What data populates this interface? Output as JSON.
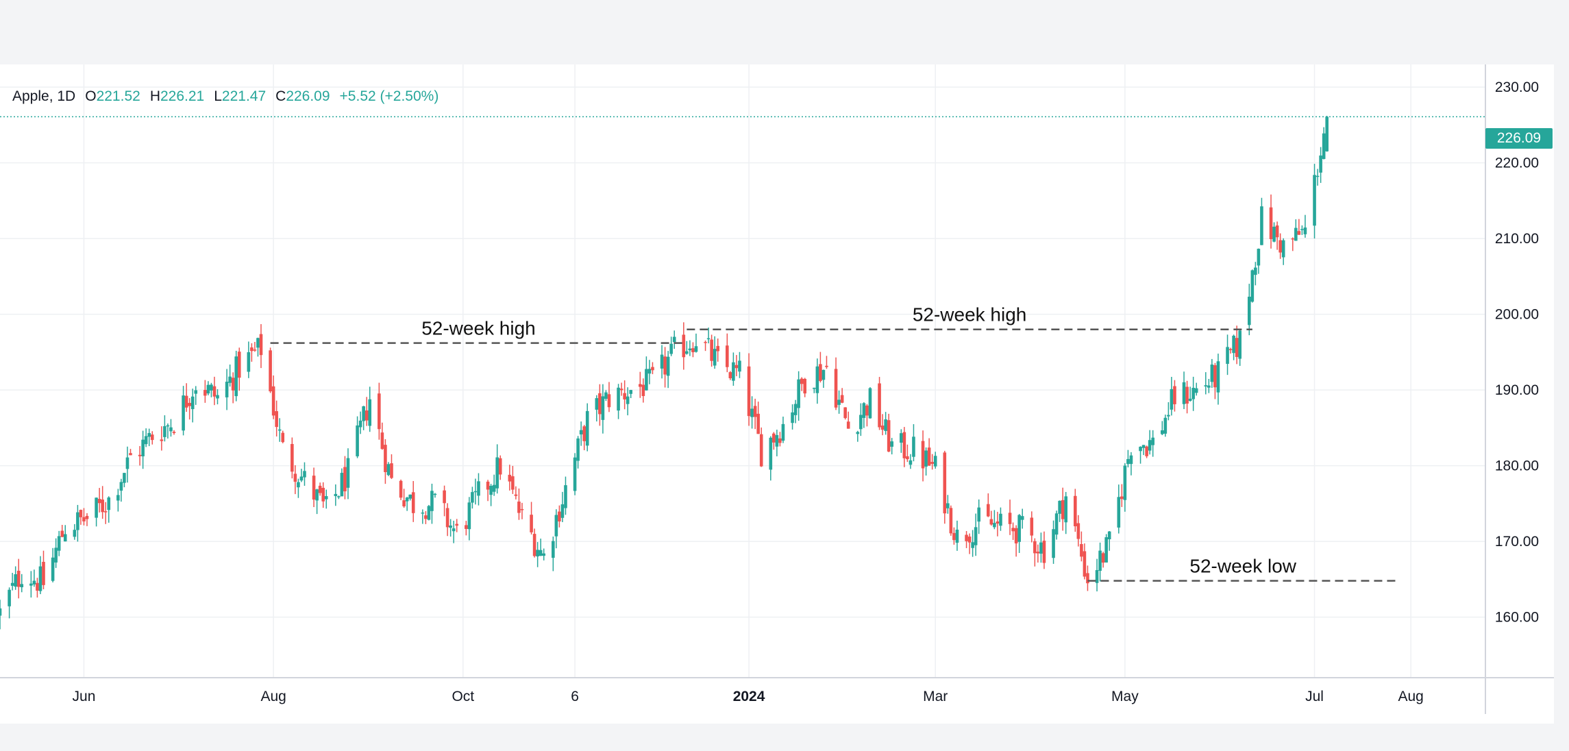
{
  "header": {
    "symbol": "Apple, 1D",
    "open_label": "O",
    "open": "221.52",
    "high_label": "H",
    "high": "226.21",
    "low_label": "L",
    "low": "221.47",
    "close_label": "C",
    "close": "226.09",
    "change": "+5.52 (+2.50%)"
  },
  "last_price_label": "226.09",
  "colors": {
    "up": "#26a69a",
    "down": "#ef5350",
    "grid": "#eef0f3",
    "axis_text": "#131722",
    "annotation": "#555555"
  },
  "chart_data": {
    "type": "candlestick",
    "title": "",
    "xlabel": "",
    "ylabel": "",
    "ylim": [
      152,
      233
    ],
    "y_ticks": [
      "230.00",
      "220.00",
      "210.00",
      "200.00",
      "190.00",
      "180.00",
      "170.00",
      "160.00"
    ],
    "x_range": [
      "2023-05-05",
      "2024-08-25"
    ],
    "x_ticks": [
      {
        "date": "2023-06-01",
        "label": "Jun",
        "bold": false
      },
      {
        "date": "2023-08-01",
        "label": "Aug",
        "bold": false
      },
      {
        "date": "2023-10-01",
        "label": "Oct",
        "bold": false
      },
      {
        "date": "2023-11-06",
        "label": "6",
        "bold": false
      },
      {
        "date": "2024-01-01",
        "label": "2024",
        "bold": true
      },
      {
        "date": "2024-03-01",
        "label": "Mar",
        "bold": false
      },
      {
        "date": "2024-05-01",
        "label": "May",
        "bold": false
      },
      {
        "date": "2024-07-01",
        "label": "Jul",
        "bold": false
      },
      {
        "date": "2024-08-01",
        "label": "Aug",
        "bold": false
      }
    ],
    "last_price": 226.09,
    "price_path": [
      [
        "2023-05-05",
        160.5
      ],
      [
        "2023-05-12",
        166
      ],
      [
        "2023-05-19",
        164.5
      ],
      [
        "2023-05-26",
        172
      ],
      [
        "2023-06-02",
        173
      ],
      [
        "2023-06-09",
        175.5
      ],
      [
        "2023-06-16",
        181
      ],
      [
        "2023-06-23",
        184
      ],
      [
        "2023-06-30",
        186
      ],
      [
        "2023-07-07",
        191
      ],
      [
        "2023-07-14",
        189
      ],
      [
        "2023-07-21",
        193
      ],
      [
        "2023-07-28",
        195.5
      ],
      [
        "2023-08-04",
        182
      ],
      [
        "2023-08-11",
        178
      ],
      [
        "2023-08-18",
        174
      ],
      [
        "2023-08-25",
        179
      ],
      [
        "2023-09-01",
        189
      ],
      [
        "2023-09-08",
        178
      ],
      [
        "2023-09-15",
        175
      ],
      [
        "2023-09-22",
        175
      ],
      [
        "2023-09-29",
        171
      ],
      [
        "2023-10-06",
        176
      ],
      [
        "2023-10-13",
        180
      ],
      [
        "2023-10-20",
        173
      ],
      [
        "2023-10-27",
        168
      ],
      [
        "2023-11-03",
        177
      ],
      [
        "2023-11-10",
        186
      ],
      [
        "2023-11-17",
        189
      ],
      [
        "2023-11-24",
        190
      ],
      [
        "2023-12-01",
        191
      ],
      [
        "2023-12-08",
        195
      ],
      [
        "2023-12-15",
        197
      ],
      [
        "2023-12-22",
        193.5
      ],
      [
        "2023-12-29",
        192
      ],
      [
        "2024-01-05",
        182
      ],
      [
        "2024-01-12",
        185.5
      ],
      [
        "2024-01-19",
        191.5
      ],
      [
        "2024-01-26",
        193
      ],
      [
        "2024-02-02",
        185
      ],
      [
        "2024-02-09",
        188.5
      ],
      [
        "2024-02-16",
        182.5
      ],
      [
        "2024-02-23",
        182
      ],
      [
        "2024-03-01",
        179.5
      ],
      [
        "2024-03-08",
        170.5
      ],
      [
        "2024-03-15",
        172.5
      ],
      [
        "2024-03-22",
        172
      ],
      [
        "2024-03-29",
        171.5
      ],
      [
        "2024-04-05",
        169
      ],
      [
        "2024-04-12",
        176
      ],
      [
        "2024-04-19",
        165
      ],
      [
        "2024-04-26",
        169.5
      ],
      [
        "2024-05-03",
        183
      ],
      [
        "2024-05-10",
        183
      ],
      [
        "2024-05-17",
        189
      ],
      [
        "2024-05-24",
        190
      ],
      [
        "2024-05-31",
        192
      ],
      [
        "2024-06-07",
        196.5
      ],
      [
        "2024-06-14",
        212.5
      ],
      [
        "2024-06-21",
        209
      ],
      [
        "2024-06-28",
        211
      ],
      [
        "2024-07-05",
        226.09
      ]
    ],
    "annotations": [
      {
        "label": "52-week high",
        "level": 196.2,
        "start": "2023-07-31",
        "end": "2023-12-12"
      },
      {
        "label": "52-week high",
        "level": 198.0,
        "start": "2023-12-12",
        "end": "2024-06-11"
      },
      {
        "label": "52-week low",
        "level": 164.8,
        "start": "2024-04-19",
        "end": "2024-07-28"
      }
    ]
  }
}
